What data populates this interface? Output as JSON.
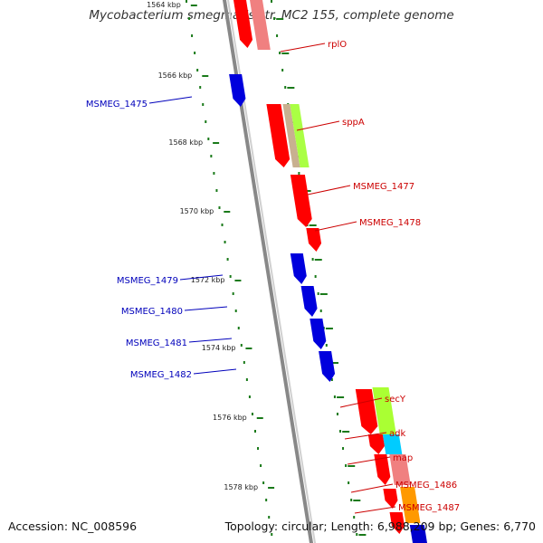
{
  "title": "Mycobacterium smegmatis str. MC2 155, complete genome",
  "footer": {
    "accession": "Accession: NC_008596",
    "summary": "Topology: circular; Length: 6,988,209 bp; Genes: 6,770"
  },
  "colors": {
    "forward_strand": "#ff0000",
    "reverse_strand": "#0000dd",
    "backbone": "#888888",
    "ticks": "#1a7a1a",
    "forward_label": "#cc0000",
    "reverse_label": "#0000bb"
  },
  "tick_labels": [
    "1564 kbp",
    "1566 kbp",
    "1568 kbp",
    "1570 kbp",
    "1572 kbp",
    "1574 kbp",
    "1576 kbp",
    "1578 kbp"
  ],
  "genes_forward": [
    {
      "label": "rplO"
    },
    {
      "label": "sppA"
    },
    {
      "label": "MSMEG_1477"
    },
    {
      "label": "MSMEG_1478"
    },
    {
      "label": "secY"
    },
    {
      "label": "adk"
    },
    {
      "label": "map"
    },
    {
      "label": "MSMEG_1486"
    },
    {
      "label": "MSMEG_1487"
    }
  ],
  "genes_reverse": [
    {
      "label": "MSMEG_1475"
    },
    {
      "label": "MSMEG_1479"
    },
    {
      "label": "MSMEG_1480"
    },
    {
      "label": "MSMEG_1481"
    },
    {
      "label": "MSMEG_1482"
    }
  ]
}
